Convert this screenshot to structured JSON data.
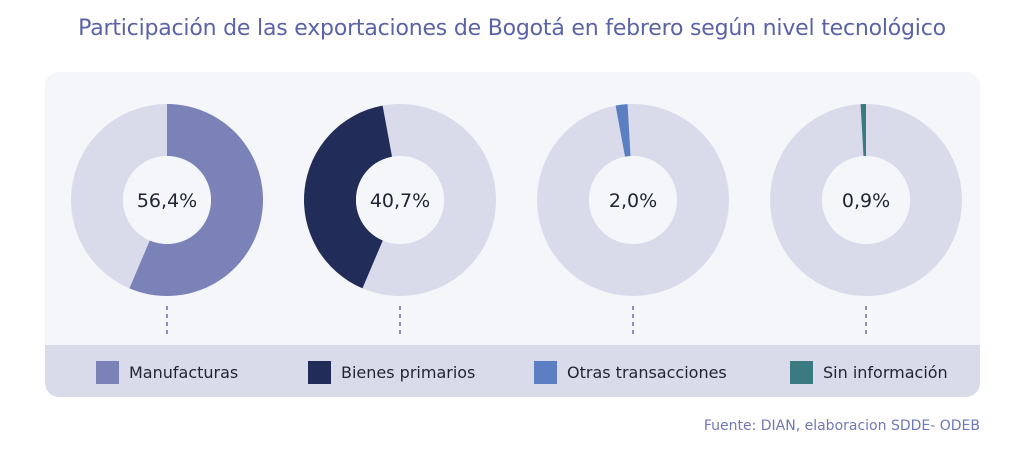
{
  "chart_data": {
    "type": "pie",
    "title": "Participación de las exportaciones de Bogotá en febrero según nivel tecnológico",
    "donut": true,
    "remainder_color": "#d9dbea",
    "series": [
      {
        "name": "Manufacturas",
        "value": 56.4,
        "label": "56,4%",
        "color": "#7b82b8"
      },
      {
        "name": "Bienes primarios",
        "value": 40.7,
        "label": "40,7%",
        "color": "#212d58"
      },
      {
        "name": "Otras transacciones",
        "value": 2.0,
        "label": "2,0%",
        "color": "#5b7fc2"
      },
      {
        "name": "Sin información",
        "value": 0.9,
        "label": "0,9%",
        "color": "#3c7a82"
      }
    ],
    "legend_position": "bottom",
    "source": "Fuente: DIAN, elaboracion SDDE- ODEB"
  }
}
